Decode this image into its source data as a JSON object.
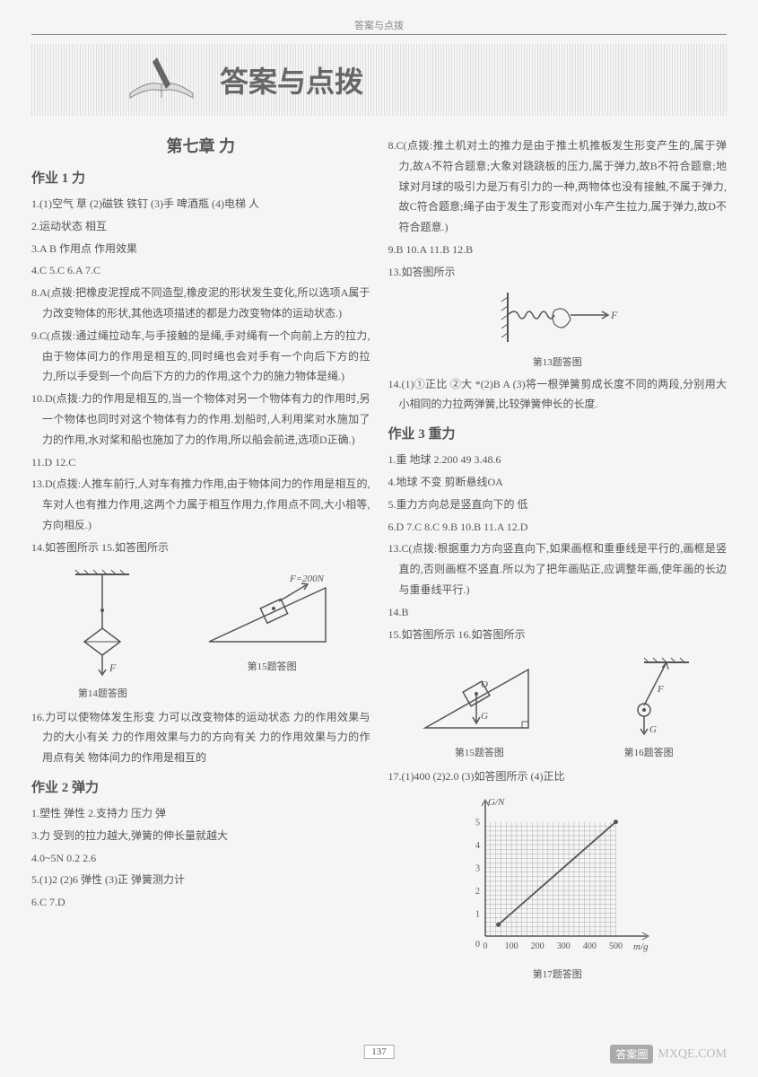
{
  "header_label": "答案与点拨",
  "title": "答案与点拨",
  "chapter": "第七章  力",
  "section1": {
    "title": "作业 1  力",
    "lines": [
      "1.(1)空气  草  (2)磁铁  铁钉  (3)手  啤酒瓶  (4)电梯  人",
      "2.运动状态  相互",
      "3.A  B  作用点  作用效果",
      "4.C  5.C  6.A  7.C",
      "8.A(点拨:把橡皮泥捏成不同造型,橡皮泥的形状发生变化,所以选项A属于力改变物体的形状,其他选项描述的都是力改变物体的运动状态.)",
      "9.C(点拨:通过绳拉动车,与手接触的是绳,手对绳有一个向前上方的拉力,由于物体间力的作用是相互的,同时绳也会对手有一个向后下方的拉力,所以手受到一个向后下方的力的作用,这个力的施力物体是绳.)",
      "10.D(点拨:力的作用是相互的,当一个物体对另一个物体有力的作用时,另一个物体也同时对这个物体有力的作用.划船时,人利用桨对水施加了力的作用,水对桨和船也施加了力的作用,所以船会前进,选项D正确.)",
      "11.D  12.C",
      "13.D(点拨:人推车前行,人对车有推力作用,由于物体间力的作用是相互的,车对人也有推力作用,这两个力属于相互作用力,作用点不同,大小相等,方向相反.)",
      "14.如答图所示                  15.如答图所示"
    ],
    "fig14_caption": "第14题答图",
    "fig15_caption": "第15题答图",
    "fig15_label": "F=200N",
    "line16": "16.力可以使物体发生形变  力可以改变物体的运动状态  力的作用效果与力的大小有关  力的作用效果与力的方向有关  力的作用效果与力的作用点有关  物体间力的作用是相互的"
  },
  "section2": {
    "title": "作业 2  弹力",
    "lines": [
      "1.塑性  弹性  2.支持力  压力  弹",
      "3.力  受到的拉力越大,弹簧的伸长量就越大",
      "4.0~5N  0.2  2.6",
      "5.(1)2  (2)6  弹性  (3)正  弹簧测力计",
      "6.C  7.D"
    ]
  },
  "right_top": [
    "8.C(点拨:推土机对土的推力是由于推土机推板发生形变产生的,属于弹力,故A不符合题意;大象对跷跷板的压力,属于弹力,故B不符合题意;地球对月球的吸引力是万有引力的一种,两物体也没有接触,不属于弹力,故C符合题意;绳子由于发生了形变而对小车产生拉力,属于弹力,故D不符合题意.)",
    "9.B  10.A  11.B  12.B",
    "13.如答图所示"
  ],
  "fig13_caption": "第13题答图",
  "fig13_label": "F",
  "right_mid": [
    "14.(1)①正比  ②大  *(2)B  A  (3)将一根弹簧剪成长度不同的两段,分别用大小相同的力拉两弹簧,比较弹簧伸长的长度."
  ],
  "section3": {
    "title": "作业 3  重力",
    "lines": [
      "1.重  地球  2.200  49  3.48.6",
      "4.地球  不变  剪断悬线OA",
      "5.重力方向总是竖直向下的  低",
      "6.D  7.C  8.C  9.B  10.B  11.A  12.D",
      "13.C(点拨:根据重力方向竖直向下,如果画框和重垂线是平行的,画框是竖直的,否则画框不竖直.所以为了把年画贴正,应调整年画,使年画的长边与重垂线平行.)",
      "14.B",
      "15.如答图所示                    16.如答图所示"
    ],
    "fig15_caption": "第15题答图",
    "fig16_caption": "第16题答图",
    "line17": "17.(1)400  (2)2.0  (3)如答图所示  (4)正比",
    "fig17_caption": "第17题答图",
    "chart17": {
      "type": "line",
      "xlabel": "m/g",
      "ylabel": "G/N",
      "xlim": [
        0,
        550
      ],
      "ylim": [
        0,
        5.5
      ],
      "xticks": [
        0,
        100,
        200,
        300,
        400,
        500
      ],
      "yticks": [
        0,
        1,
        2,
        3,
        4,
        5
      ],
      "grid_color": "#999",
      "line_color": "#555",
      "points": [
        [
          50,
          0.5
        ],
        [
          500,
          5.0
        ]
      ],
      "background": "#f5f5f5"
    }
  },
  "page_number": "137",
  "watermark": {
    "badge": "答案圈",
    "url": "MXQE.COM"
  },
  "colors": {
    "text": "#555",
    "bg": "#f5f5f5",
    "grid": "#999"
  }
}
